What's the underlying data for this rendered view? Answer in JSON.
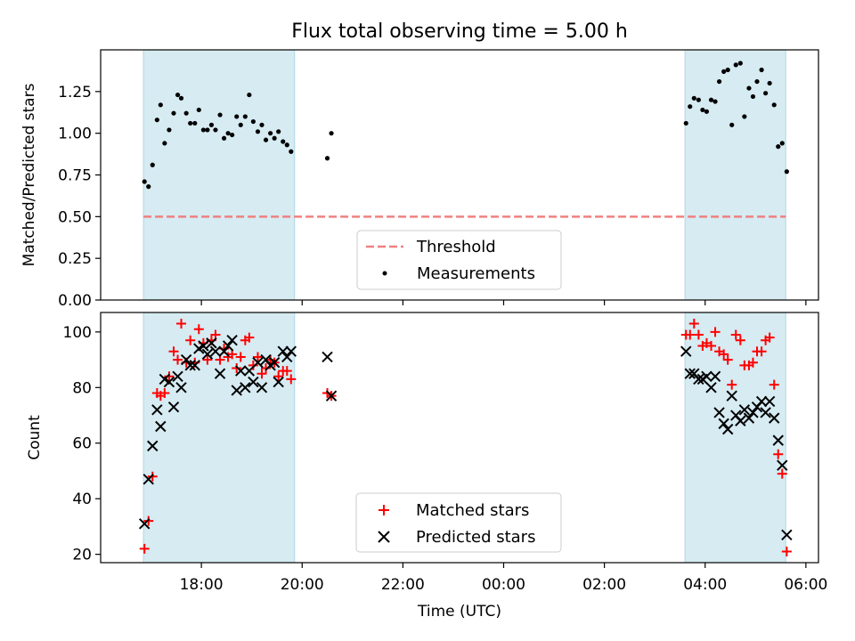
{
  "title": "Flux total observing time = 5.00 h",
  "colors": {
    "shade": "#add8e6",
    "threshold": "#f08080",
    "matched": "#ff0000",
    "predicted": "#000000",
    "measurement": "#000000"
  },
  "chart_data": [
    {
      "type": "scatter",
      "panel": "top",
      "ylabel": "Matched/Predicted stars",
      "xlabel": "",
      "ylim": [
        0,
        1.5
      ],
      "yticks": [
        0.0,
        0.25,
        0.5,
        0.75,
        1.0,
        1.25
      ],
      "ytick_labels": [
        "0.00",
        "0.25",
        "0.50",
        "0.75",
        "1.00",
        "1.25"
      ],
      "x_unit": "hours since 16:00 UTC",
      "shaded_intervals": [
        [
          0.85,
          3.85
        ],
        [
          11.6,
          13.6
        ]
      ],
      "threshold": {
        "name": "Threshold",
        "value": 0.5,
        "x_range": [
          0.85,
          13.6
        ]
      },
      "series": [
        {
          "name": "Measurements",
          "x": [
            0.87,
            0.95,
            1.03,
            1.12,
            1.19,
            1.27,
            1.36,
            1.45,
            1.53,
            1.6,
            1.7,
            1.78,
            1.87,
            1.95,
            2.04,
            2.12,
            2.2,
            2.28,
            2.37,
            2.45,
            2.53,
            2.61,
            2.7,
            2.78,
            2.87,
            2.95,
            3.03,
            3.12,
            3.2,
            3.28,
            3.37,
            3.45,
            3.53,
            3.62,
            3.7,
            3.78,
            4.5,
            4.58,
            11.62,
            11.7,
            11.78,
            11.87,
            11.95,
            12.03,
            12.12,
            12.2,
            12.28,
            12.37,
            12.45,
            12.53,
            12.61,
            12.7,
            12.78,
            12.87,
            12.95,
            13.03,
            13.12,
            13.2,
            13.28,
            13.37,
            13.45,
            13.53,
            13.62
          ],
          "y": [
            0.71,
            0.68,
            0.81,
            1.08,
            1.17,
            0.94,
            1.02,
            1.12,
            1.23,
            1.21,
            1.12,
            1.06,
            1.06,
            1.14,
            1.02,
            1.02,
            1.05,
            1.02,
            1.11,
            0.97,
            1.0,
            0.99,
            1.1,
            1.05,
            1.1,
            1.23,
            1.07,
            1.01,
            1.05,
            0.96,
            1.0,
            0.97,
            1.01,
            0.95,
            0.93,
            0.89,
            0.85,
            1.0,
            1.06,
            1.16,
            1.21,
            1.2,
            1.14,
            1.13,
            1.2,
            1.19,
            1.31,
            1.37,
            1.38,
            1.05,
            1.41,
            1.42,
            1.1,
            1.27,
            1.22,
            1.31,
            1.38,
            1.24,
            1.3,
            1.17,
            0.92,
            0.94,
            0.77
          ]
        }
      ],
      "legend": [
        "Threshold",
        "Measurements"
      ],
      "legend_position": "bottom-center"
    },
    {
      "type": "scatter",
      "panel": "bottom",
      "ylabel": "Count",
      "xlabel": "Time (UTC)",
      "ylim": [
        17,
        107
      ],
      "yticks": [
        20,
        40,
        60,
        80,
        100
      ],
      "ytick_labels": [
        "20",
        "40",
        "60",
        "80",
        "100"
      ],
      "xlim": [
        0.0,
        14.25
      ],
      "xticks": [
        2,
        4,
        6,
        8,
        10,
        12,
        14
      ],
      "xtick_labels": [
        "18:00",
        "20:00",
        "22:00",
        "00:00",
        "02:00",
        "04:00",
        "06:00"
      ],
      "x_unit": "hours since 16:00 UTC",
      "shaded_intervals": [
        [
          0.85,
          3.85
        ],
        [
          11.6,
          13.6
        ]
      ],
      "series": [
        {
          "name": "Matched stars",
          "marker": "+",
          "x": [
            0.87,
            0.95,
            1.03,
            1.12,
            1.19,
            1.27,
            1.36,
            1.45,
            1.53,
            1.6,
            1.7,
            1.78,
            1.87,
            1.95,
            2.04,
            2.12,
            2.2,
            2.28,
            2.37,
            2.45,
            2.53,
            2.61,
            2.7,
            2.78,
            2.87,
            2.95,
            3.03,
            3.12,
            3.2,
            3.28,
            3.37,
            3.45,
            3.53,
            3.62,
            3.7,
            3.78,
            4.5,
            4.58,
            11.62,
            11.7,
            11.78,
            11.87,
            11.95,
            12.03,
            12.12,
            12.2,
            12.28,
            12.37,
            12.45,
            12.53,
            12.61,
            12.7,
            12.78,
            12.87,
            12.95,
            13.03,
            13.12,
            13.2,
            13.28,
            13.37,
            13.45,
            13.53,
            13.62
          ],
          "y": [
            22,
            32,
            48,
            78,
            77,
            78,
            84,
            93,
            90,
            103,
            89,
            97,
            89,
            101,
            96,
            90,
            97,
            99,
            90,
            94,
            91,
            92,
            87,
            91,
            97,
            98,
            88,
            91,
            85,
            87,
            90,
            89,
            84,
            86,
            86,
            83,
            78,
            77,
            99,
            99,
            103,
            99,
            95,
            96,
            95,
            100,
            93,
            92,
            90,
            81,
            99,
            97,
            88,
            88,
            89,
            93,
            93,
            97,
            98,
            81,
            56,
            49,
            21
          ]
        },
        {
          "name": "Predicted stars",
          "marker": "x",
          "x": [
            0.87,
            0.95,
            1.03,
            1.12,
            1.19,
            1.27,
            1.36,
            1.45,
            1.53,
            1.6,
            1.7,
            1.78,
            1.87,
            1.95,
            2.04,
            2.12,
            2.2,
            2.28,
            2.37,
            2.45,
            2.53,
            2.61,
            2.7,
            2.78,
            2.87,
            2.95,
            3.03,
            3.12,
            3.2,
            3.28,
            3.37,
            3.45,
            3.53,
            3.62,
            3.7,
            3.78,
            4.5,
            4.58,
            11.62,
            11.7,
            11.78,
            11.87,
            11.95,
            12.03,
            12.12,
            12.2,
            12.28,
            12.37,
            12.45,
            12.53,
            12.61,
            12.7,
            12.78,
            12.87,
            12.95,
            13.03,
            13.12,
            13.2,
            13.28,
            13.37,
            13.45,
            13.53,
            13.62
          ],
          "y": [
            31,
            47,
            59,
            72,
            66,
            83,
            82,
            73,
            84,
            80,
            90,
            88,
            88,
            94,
            95,
            92,
            96,
            93,
            85,
            93,
            95,
            97,
            79,
            86,
            80,
            86,
            82,
            89,
            80,
            90,
            88,
            89,
            82,
            93,
            91,
            93,
            91,
            77,
            93,
            85,
            85,
            83,
            83,
            84,
            80,
            84,
            71,
            67,
            65,
            77,
            70,
            68,
            72,
            69,
            71,
            73,
            75,
            71,
            75,
            69,
            61,
            52,
            27
          ]
        }
      ],
      "legend": [
        "Matched stars",
        "Predicted stars"
      ],
      "legend_position": "bottom-center"
    }
  ]
}
